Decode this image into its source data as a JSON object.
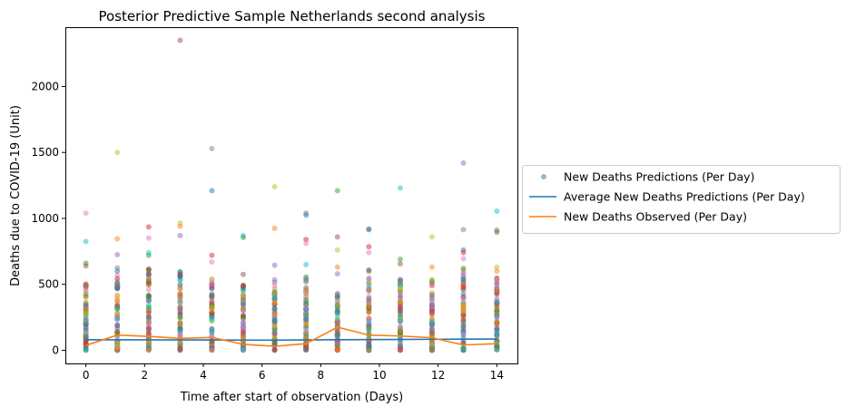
{
  "chart_data": {
    "type": "scatter",
    "title": "Posterior Predictive Sample Netherlands second analysis",
    "xlabel": "Time after start of observation (Days)",
    "ylabel": "Deaths due to COVID-19 (Unit)",
    "xlim": [
      -0.7,
      14.7
    ],
    "ylim": [
      -100,
      2450
    ],
    "xticks": [
      0,
      2,
      4,
      6,
      8,
      10,
      12,
      14
    ],
    "xtick_labels": [
      "0",
      "2",
      "4",
      "6",
      "8",
      "10",
      "12",
      "14"
    ],
    "yticks": [
      0,
      500,
      1000,
      1500,
      2000
    ],
    "ytick_labels": [
      "0",
      "500",
      "1000",
      "1500",
      "2000"
    ],
    "grid": false,
    "legend_position": "outside-right",
    "days": [
      0,
      1.07,
      2.14,
      3.21,
      4.29,
      5.36,
      6.43,
      7.5,
      8.57,
      9.64,
      10.71,
      11.79,
      12.86,
      14
    ],
    "sample_colors": [
      "#1f77b4",
      "#ff7f0e",
      "#2ca02c",
      "#d62728",
      "#9467bd",
      "#8c564b",
      "#e377c2",
      "#7f7f7f",
      "#bcbd22",
      "#17becf"
    ],
    "series": [
      {
        "name": "New Deaths Predictions (Per Day)",
        "kind": "scatter",
        "color": "#1f77b4",
        "outliers": [
          [
            0,
            1040
          ],
          [
            0,
            825
          ],
          [
            0,
            660
          ],
          [
            0,
            640
          ],
          [
            1.07,
            1500
          ],
          [
            1.07,
            845
          ],
          [
            1.07,
            725
          ],
          [
            1.07,
            625
          ],
          [
            1.07,
            600
          ],
          [
            2.14,
            935
          ],
          [
            2.14,
            850
          ],
          [
            2.14,
            740
          ],
          [
            2.14,
            720
          ],
          [
            3.21,
            2350
          ],
          [
            3.21,
            965
          ],
          [
            3.21,
            940
          ],
          [
            3.21,
            870
          ],
          [
            4.29,
            1530
          ],
          [
            4.29,
            1210
          ],
          [
            4.29,
            720
          ],
          [
            4.29,
            670
          ],
          [
            5.36,
            870
          ],
          [
            5.36,
            855
          ],
          [
            5.36,
            575
          ],
          [
            6.43,
            1240
          ],
          [
            6.43,
            925
          ],
          [
            6.43,
            645
          ],
          [
            7.5,
            1040
          ],
          [
            7.5,
            1025
          ],
          [
            7.5,
            840
          ],
          [
            7.5,
            810
          ],
          [
            7.5,
            650
          ],
          [
            8.57,
            1210
          ],
          [
            8.57,
            860
          ],
          [
            8.57,
            760
          ],
          [
            8.57,
            630
          ],
          [
            8.57,
            580
          ],
          [
            9.64,
            920
          ],
          [
            9.64,
            915
          ],
          [
            9.64,
            785
          ],
          [
            9.64,
            740
          ],
          [
            10.71,
            1230
          ],
          [
            10.71,
            690
          ],
          [
            10.71,
            655
          ],
          [
            11.79,
            860
          ],
          [
            11.79,
            630
          ],
          [
            12.86,
            1420
          ],
          [
            12.86,
            915
          ],
          [
            12.86,
            760
          ],
          [
            12.86,
            740
          ],
          [
            12.86,
            695
          ],
          [
            14,
            1055
          ],
          [
            14,
            910
          ],
          [
            14,
            895
          ],
          [
            14,
            630
          ],
          [
            14,
            600
          ]
        ],
        "column_max": [
          560,
          570,
          620,
          600,
          580,
          520,
          540,
          560,
          440,
          610,
          560,
          560,
          640,
          580
        ]
      },
      {
        "name": "Average New Deaths Predictions (Per Day)",
        "kind": "line",
        "color": "#1f77b4",
        "values": [
          80,
          79,
          79,
          78,
          78,
          77,
          77,
          78,
          80,
          81,
          82,
          83,
          84,
          85
        ]
      },
      {
        "name": "New Deaths Observed (Per Day)",
        "kind": "line",
        "color": "#ff7f0e",
        "values": [
          37,
          115,
          105,
          90,
          97,
          45,
          30,
          50,
          175,
          115,
          108,
          95,
          40,
          50
        ]
      }
    ]
  }
}
